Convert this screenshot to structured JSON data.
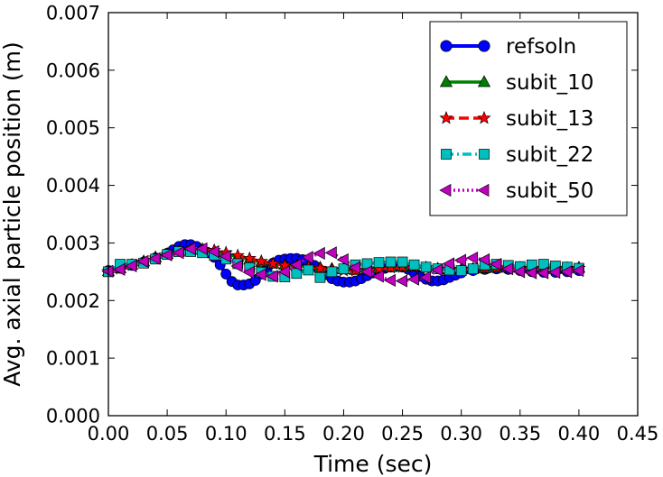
{
  "chart_data": {
    "type": "line",
    "title": "",
    "xlabel": "Time (sec)",
    "ylabel": "Avg. axial particle position (m)",
    "xlim": [
      0.0,
      0.45
    ],
    "ylim": [
      0.0,
      0.007
    ],
    "xticks": [
      "0.00",
      "0.05",
      "0.10",
      "0.15",
      "0.20",
      "0.25",
      "0.30",
      "0.35",
      "0.40",
      "0.45"
    ],
    "yticks": [
      "0.000",
      "0.001",
      "0.002",
      "0.003",
      "0.004",
      "0.005",
      "0.006",
      "0.007"
    ],
    "grid": false,
    "legend_position": "top-right",
    "series": [
      {
        "name": "refsoln",
        "color": "#0000ff",
        "style": "solid",
        "marker": "circle",
        "x": [
          0.0,
          0.01,
          0.02,
          0.03,
          0.04,
          0.05,
          0.055,
          0.06,
          0.065,
          0.07,
          0.075,
          0.08,
          0.085,
          0.09,
          0.095,
          0.1,
          0.105,
          0.11,
          0.115,
          0.12,
          0.125,
          0.13,
          0.135,
          0.14,
          0.145,
          0.15,
          0.155,
          0.16,
          0.165,
          0.17,
          0.175,
          0.18,
          0.185,
          0.19,
          0.195,
          0.2,
          0.205,
          0.21,
          0.215,
          0.22,
          0.225,
          0.23,
          0.235,
          0.24,
          0.245,
          0.25,
          0.255,
          0.26,
          0.265,
          0.27,
          0.275,
          0.28,
          0.285,
          0.29,
          0.295,
          0.3,
          0.31,
          0.32,
          0.33,
          0.34,
          0.35,
          0.36,
          0.37,
          0.38,
          0.39,
          0.4
        ],
        "y": [
          0.00252,
          0.00256,
          0.00261,
          0.00267,
          0.00274,
          0.00282,
          0.00288,
          0.00294,
          0.00297,
          0.00297,
          0.00294,
          0.00289,
          0.00283,
          0.00275,
          0.00262,
          0.00246,
          0.00233,
          0.00227,
          0.00227,
          0.00229,
          0.00235,
          0.00246,
          0.00256,
          0.00265,
          0.0027,
          0.00272,
          0.00273,
          0.00273,
          0.00271,
          0.00267,
          0.00261,
          0.00253,
          0.00245,
          0.00238,
          0.00234,
          0.00232,
          0.00232,
          0.00234,
          0.00238,
          0.00243,
          0.00248,
          0.00252,
          0.00256,
          0.00258,
          0.00259,
          0.00258,
          0.00254,
          0.00248,
          0.00242,
          0.00237,
          0.00234,
          0.00234,
          0.00236,
          0.0024,
          0.00244,
          0.00248,
          0.00252,
          0.00254,
          0.00255,
          0.00254,
          0.00252,
          0.0025,
          0.00249,
          0.00249,
          0.0025,
          0.00252
        ]
      },
      {
        "name": "subit_10",
        "color": "#008000",
        "style": "solid",
        "marker": "triangle-up",
        "x": [
          0.0,
          0.01,
          0.02,
          0.03,
          0.04,
          0.05,
          0.06,
          0.07,
          0.08,
          0.09,
          0.1,
          0.11,
          0.12,
          0.13,
          0.14,
          0.15,
          0.16,
          0.17,
          0.18,
          0.19,
          0.2,
          0.21,
          0.22,
          0.23,
          0.24,
          0.25,
          0.26,
          0.27,
          0.28,
          0.29,
          0.3,
          0.31,
          0.32,
          0.33,
          0.34,
          0.35,
          0.36,
          0.37,
          0.38,
          0.39,
          0.4
        ],
        "y": [
          0.00251,
          0.00256,
          0.00262,
          0.00268,
          0.00275,
          0.00281,
          0.00285,
          0.00288,
          0.00288,
          0.00286,
          0.00281,
          0.00276,
          0.00271,
          0.00267,
          0.00264,
          0.00262,
          0.0026,
          0.00259,
          0.00257,
          0.00255,
          0.00254,
          0.00253,
          0.00254,
          0.00256,
          0.00258,
          0.00259,
          0.00259,
          0.00257,
          0.00255,
          0.00254,
          0.00254,
          0.00255,
          0.00256,
          0.00257,
          0.00257,
          0.00257,
          0.00256,
          0.00256,
          0.00256,
          0.00256,
          0.00257
        ]
      },
      {
        "name": "subit_13",
        "color": "#ff0000",
        "style": "dashed",
        "marker": "star",
        "x": [
          0.0,
          0.01,
          0.02,
          0.03,
          0.04,
          0.05,
          0.06,
          0.07,
          0.08,
          0.09,
          0.1,
          0.11,
          0.12,
          0.13,
          0.14,
          0.15,
          0.16,
          0.17,
          0.18,
          0.19,
          0.2,
          0.21,
          0.22,
          0.23,
          0.24,
          0.25,
          0.26,
          0.27,
          0.28,
          0.29,
          0.3,
          0.31,
          0.32,
          0.33,
          0.34,
          0.35,
          0.36,
          0.37,
          0.38,
          0.39,
          0.4
        ],
        "y": [
          0.00251,
          0.00255,
          0.00261,
          0.00267,
          0.00274,
          0.0028,
          0.00285,
          0.00288,
          0.00289,
          0.00287,
          0.00283,
          0.00278,
          0.00273,
          0.00268,
          0.00264,
          0.00261,
          0.00259,
          0.00258,
          0.00256,
          0.00254,
          0.00252,
          0.00252,
          0.00253,
          0.00255,
          0.00257,
          0.00258,
          0.00258,
          0.00257,
          0.00255,
          0.00254,
          0.00254,
          0.00255,
          0.00256,
          0.00257,
          0.00257,
          0.00256,
          0.00256,
          0.00256,
          0.00256,
          0.00256,
          0.00256
        ]
      },
      {
        "name": "subit_22",
        "color": "#00bfbf",
        "style": "dashdot",
        "marker": "square",
        "x": [
          0.0,
          0.01,
          0.02,
          0.03,
          0.04,
          0.05,
          0.06,
          0.07,
          0.08,
          0.09,
          0.1,
          0.11,
          0.12,
          0.13,
          0.14,
          0.15,
          0.16,
          0.17,
          0.18,
          0.19,
          0.2,
          0.21,
          0.22,
          0.23,
          0.24,
          0.25,
          0.26,
          0.27,
          0.28,
          0.29,
          0.3,
          0.31,
          0.32,
          0.33,
          0.34,
          0.35,
          0.36,
          0.37,
          0.38,
          0.39,
          0.4
        ],
        "y": [
          0.0025,
          0.00263,
          0.00263,
          0.00265,
          0.00272,
          0.0028,
          0.00285,
          0.00285,
          0.00283,
          0.00279,
          0.00272,
          0.00264,
          0.00257,
          0.00249,
          0.00242,
          0.00241,
          0.00247,
          0.00253,
          0.0024,
          0.0025,
          0.00255,
          0.00262,
          0.00264,
          0.00266,
          0.00267,
          0.00267,
          0.00262,
          0.00258,
          0.00255,
          0.00253,
          0.00252,
          0.00255,
          0.00262,
          0.00263,
          0.00261,
          0.00259,
          0.00262,
          0.00263,
          0.0026,
          0.00258,
          0.00256
        ]
      },
      {
        "name": "subit_50",
        "color": "#bf00bf",
        "style": "dotted",
        "marker": "triangle-left",
        "x": [
          0.0,
          0.01,
          0.02,
          0.03,
          0.04,
          0.05,
          0.06,
          0.07,
          0.08,
          0.09,
          0.1,
          0.11,
          0.12,
          0.13,
          0.14,
          0.15,
          0.16,
          0.17,
          0.18,
          0.19,
          0.2,
          0.21,
          0.22,
          0.23,
          0.24,
          0.25,
          0.26,
          0.27,
          0.28,
          0.29,
          0.3,
          0.31,
          0.32,
          0.33,
          0.34,
          0.35,
          0.36,
          0.37,
          0.38,
          0.39,
          0.4
        ],
        "y": [
          0.00251,
          0.00254,
          0.0026,
          0.00268,
          0.00273,
          0.00279,
          0.00283,
          0.0029,
          0.0029,
          0.00285,
          0.00277,
          0.0026,
          0.00249,
          0.00245,
          0.00242,
          0.0025,
          0.00262,
          0.00275,
          0.00282,
          0.00283,
          0.00271,
          0.00257,
          0.0025,
          0.00242,
          0.00235,
          0.00234,
          0.00237,
          0.0024,
          0.00253,
          0.00264,
          0.0027,
          0.00274,
          0.00271,
          0.00263,
          0.00255,
          0.0025,
          0.00248,
          0.00248,
          0.00249,
          0.0025,
          0.00252
        ]
      }
    ]
  }
}
